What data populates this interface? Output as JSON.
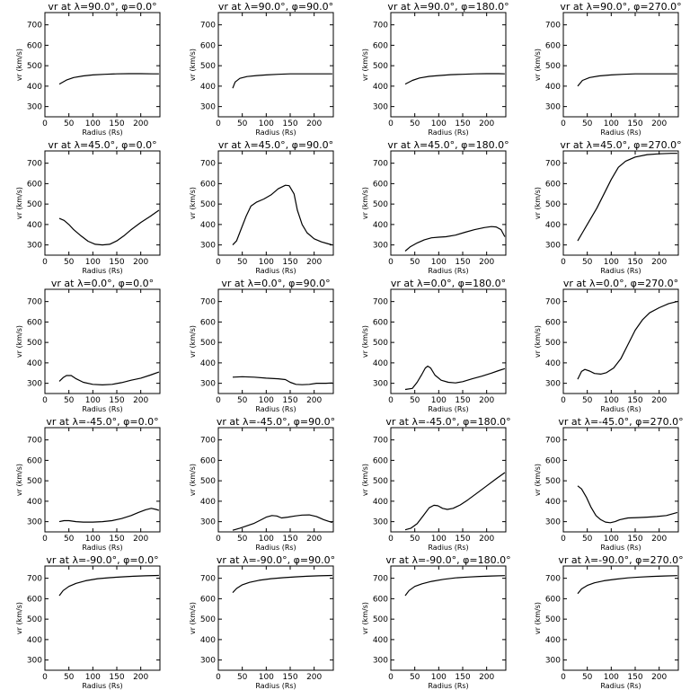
{
  "chart_data": {
    "type": "line",
    "layout": "grid-5x4",
    "xlabel": "Radius (Rs)",
    "ylabel": "vr (km/s)",
    "xlim": [
      0,
      240
    ],
    "ylim": [
      250,
      760
    ],
    "xticks": [
      0,
      50,
      100,
      150,
      200
    ],
    "yticks": [
      300,
      400,
      500,
      600,
      700
    ],
    "panels": [
      {
        "title": "vr at λ=90.0°, φ=0.0°",
        "points": [
          [
            30,
            410
          ],
          [
            45,
            430
          ],
          [
            60,
            442
          ],
          [
            80,
            450
          ],
          [
            100,
            455
          ],
          [
            125,
            458
          ],
          [
            150,
            460
          ],
          [
            175,
            461
          ],
          [
            200,
            461
          ],
          [
            225,
            460
          ],
          [
            238,
            460
          ]
        ]
      },
      {
        "title": "vr at λ=90.0°, φ=90.0°",
        "points": [
          [
            30,
            390
          ],
          [
            35,
            420
          ],
          [
            45,
            438
          ],
          [
            60,
            447
          ],
          [
            80,
            452
          ],
          [
            100,
            455
          ],
          [
            125,
            458
          ],
          [
            150,
            460
          ],
          [
            175,
            460
          ],
          [
            200,
            460
          ],
          [
            225,
            460
          ],
          [
            238,
            460
          ]
        ]
      },
      {
        "title": "vr at λ=90.0°, φ=180.0°",
        "points": [
          [
            30,
            410
          ],
          [
            45,
            428
          ],
          [
            60,
            440
          ],
          [
            80,
            448
          ],
          [
            100,
            452
          ],
          [
            125,
            456
          ],
          [
            150,
            458
          ],
          [
            175,
            460
          ],
          [
            200,
            461
          ],
          [
            225,
            461
          ],
          [
            238,
            460
          ]
        ]
      },
      {
        "title": "vr at λ=90.0°, φ=270.0°",
        "points": [
          [
            30,
            400
          ],
          [
            40,
            428
          ],
          [
            55,
            442
          ],
          [
            75,
            450
          ],
          [
            100,
            455
          ],
          [
            125,
            458
          ],
          [
            150,
            460
          ],
          [
            175,
            460
          ],
          [
            200,
            460
          ],
          [
            225,
            460
          ],
          [
            238,
            460
          ]
        ]
      },
      {
        "title": "vr at λ=45.0°, φ=0.0°",
        "points": [
          [
            30,
            430
          ],
          [
            40,
            420
          ],
          [
            50,
            400
          ],
          [
            60,
            375
          ],
          [
            75,
            345
          ],
          [
            90,
            318
          ],
          [
            105,
            303
          ],
          [
            120,
            300
          ],
          [
            135,
            303
          ],
          [
            150,
            320
          ],
          [
            165,
            345
          ],
          [
            180,
            375
          ],
          [
            200,
            410
          ],
          [
            220,
            440
          ],
          [
            238,
            470
          ]
        ]
      },
      {
        "title": "vr at λ=45.0°, φ=90.0°",
        "points": [
          [
            30,
            300
          ],
          [
            38,
            320
          ],
          [
            48,
            380
          ],
          [
            58,
            440
          ],
          [
            68,
            490
          ],
          [
            80,
            510
          ],
          [
            95,
            525
          ],
          [
            110,
            545
          ],
          [
            125,
            575
          ],
          [
            140,
            592
          ],
          [
            148,
            590
          ],
          [
            158,
            550
          ],
          [
            165,
            470
          ],
          [
            175,
            400
          ],
          [
            185,
            360
          ],
          [
            200,
            330
          ],
          [
            215,
            315
          ],
          [
            230,
            305
          ],
          [
            238,
            300
          ]
        ]
      },
      {
        "title": "vr at λ=45.0°, φ=180.0°",
        "points": [
          [
            30,
            270
          ],
          [
            40,
            290
          ],
          [
            55,
            310
          ],
          [
            70,
            325
          ],
          [
            85,
            335
          ],
          [
            100,
            338
          ],
          [
            115,
            340
          ],
          [
            135,
            348
          ],
          [
            155,
            362
          ],
          [
            175,
            375
          ],
          [
            195,
            385
          ],
          [
            210,
            390
          ],
          [
            220,
            388
          ],
          [
            230,
            375
          ],
          [
            238,
            340
          ]
        ]
      },
      {
        "title": "vr at λ=45.0°, φ=270.0°",
        "points": [
          [
            30,
            320
          ],
          [
            40,
            360
          ],
          [
            55,
            420
          ],
          [
            70,
            480
          ],
          [
            85,
            550
          ],
          [
            100,
            620
          ],
          [
            115,
            680
          ],
          [
            130,
            710
          ],
          [
            150,
            730
          ],
          [
            175,
            742
          ],
          [
            200,
            746
          ],
          [
            225,
            748
          ],
          [
            238,
            748
          ]
        ]
      },
      {
        "title": "vr at λ=0.0°, φ=0.0°",
        "points": [
          [
            30,
            310
          ],
          [
            38,
            328
          ],
          [
            45,
            338
          ],
          [
            55,
            338
          ],
          [
            65,
            322
          ],
          [
            80,
            305
          ],
          [
            100,
            295
          ],
          [
            120,
            292
          ],
          [
            140,
            295
          ],
          [
            160,
            303
          ],
          [
            180,
            315
          ],
          [
            200,
            325
          ],
          [
            220,
            340
          ],
          [
            238,
            355
          ]
        ]
      },
      {
        "title": "vr at λ=0.0°, φ=90.0°",
        "points": [
          [
            30,
            330
          ],
          [
            50,
            332
          ],
          [
            75,
            330
          ],
          [
            100,
            325
          ],
          [
            125,
            322
          ],
          [
            140,
            318
          ],
          [
            150,
            305
          ],
          [
            162,
            295
          ],
          [
            175,
            293
          ],
          [
            190,
            295
          ],
          [
            205,
            300
          ],
          [
            225,
            300
          ],
          [
            238,
            302
          ]
        ]
      },
      {
        "title": "vr at λ=0.0°, φ=180.0°",
        "points": [
          [
            30,
            270
          ],
          [
            45,
            275
          ],
          [
            55,
            305
          ],
          [
            65,
            345
          ],
          [
            72,
            375
          ],
          [
            77,
            384
          ],
          [
            83,
            375
          ],
          [
            92,
            340
          ],
          [
            105,
            315
          ],
          [
            120,
            305
          ],
          [
            135,
            302
          ],
          [
            150,
            308
          ],
          [
            170,
            322
          ],
          [
            190,
            335
          ],
          [
            210,
            350
          ],
          [
            225,
            362
          ],
          [
            238,
            372
          ]
        ]
      },
      {
        "title": "vr at λ=0.0°, φ=270.0°",
        "points": [
          [
            30,
            320
          ],
          [
            38,
            358
          ],
          [
            45,
            368
          ],
          [
            55,
            360
          ],
          [
            65,
            348
          ],
          [
            78,
            345
          ],
          [
            90,
            352
          ],
          [
            105,
            375
          ],
          [
            120,
            420
          ],
          [
            135,
            490
          ],
          [
            150,
            560
          ],
          [
            165,
            610
          ],
          [
            180,
            645
          ],
          [
            200,
            670
          ],
          [
            220,
            690
          ],
          [
            238,
            700
          ]
        ]
      },
      {
        "title": "vr at λ=-45.0°, φ=0.0°",
        "points": [
          [
            30,
            300
          ],
          [
            40,
            305
          ],
          [
            50,
            305
          ],
          [
            65,
            300
          ],
          [
            80,
            298
          ],
          [
            100,
            298
          ],
          [
            120,
            300
          ],
          [
            140,
            305
          ],
          [
            160,
            315
          ],
          [
            180,
            330
          ],
          [
            195,
            345
          ],
          [
            210,
            358
          ],
          [
            222,
            365
          ],
          [
            232,
            360
          ],
          [
            238,
            355
          ]
        ]
      },
      {
        "title": "vr at λ=-45.0°, φ=90.0°",
        "points": [
          [
            30,
            258
          ],
          [
            45,
            268
          ],
          [
            60,
            280
          ],
          [
            75,
            292
          ],
          [
            90,
            310
          ],
          [
            100,
            322
          ],
          [
            112,
            330
          ],
          [
            122,
            328
          ],
          [
            132,
            318
          ],
          [
            145,
            322
          ],
          [
            160,
            328
          ],
          [
            175,
            332
          ],
          [
            190,
            333
          ],
          [
            205,
            325
          ],
          [
            220,
            310
          ],
          [
            232,
            300
          ],
          [
            238,
            296
          ]
        ]
      },
      {
        "title": "vr at λ=-45.0°, φ=180.0°",
        "points": [
          [
            30,
            260
          ],
          [
            42,
            268
          ],
          [
            55,
            290
          ],
          [
            68,
            330
          ],
          [
            80,
            368
          ],
          [
            90,
            380
          ],
          [
            98,
            378
          ],
          [
            108,
            365
          ],
          [
            118,
            360
          ],
          [
            130,
            365
          ],
          [
            145,
            382
          ],
          [
            160,
            405
          ],
          [
            180,
            440
          ],
          [
            200,
            475
          ],
          [
            220,
            510
          ],
          [
            238,
            540
          ]
        ]
      },
      {
        "title": "vr at λ=-45.0°, φ=270.0°",
        "points": [
          [
            30,
            475
          ],
          [
            38,
            460
          ],
          [
            48,
            420
          ],
          [
            58,
            370
          ],
          [
            68,
            330
          ],
          [
            78,
            310
          ],
          [
            88,
            298
          ],
          [
            98,
            295
          ],
          [
            108,
            300
          ],
          [
            118,
            310
          ],
          [
            135,
            318
          ],
          [
            155,
            320
          ],
          [
            175,
            322
          ],
          [
            195,
            325
          ],
          [
            215,
            330
          ],
          [
            238,
            345
          ]
        ]
      },
      {
        "title": "vr at λ=-90.0°, φ=0.0°",
        "points": [
          [
            30,
            615
          ],
          [
            38,
            640
          ],
          [
            50,
            660
          ],
          [
            65,
            675
          ],
          [
            85,
            688
          ],
          [
            110,
            698
          ],
          [
            135,
            703
          ],
          [
            160,
            707
          ],
          [
            185,
            710
          ],
          [
            210,
            712
          ],
          [
            238,
            714
          ]
        ]
      },
      {
        "title": "vr at λ=-90.0°, φ=90.0°",
        "points": [
          [
            30,
            630
          ],
          [
            38,
            650
          ],
          [
            50,
            668
          ],
          [
            65,
            680
          ],
          [
            85,
            690
          ],
          [
            110,
            698
          ],
          [
            135,
            703
          ],
          [
            160,
            707
          ],
          [
            185,
            710
          ],
          [
            210,
            712
          ],
          [
            238,
            714
          ]
        ]
      },
      {
        "title": "vr at λ=-90.0°, φ=180.0°",
        "points": [
          [
            30,
            615
          ],
          [
            38,
            640
          ],
          [
            50,
            660
          ],
          [
            65,
            673
          ],
          [
            85,
            685
          ],
          [
            110,
            695
          ],
          [
            135,
            702
          ],
          [
            160,
            706
          ],
          [
            185,
            709
          ],
          [
            210,
            711
          ],
          [
            238,
            713
          ]
        ]
      },
      {
        "title": "vr at λ=-90.0°, φ=270.0°",
        "points": [
          [
            30,
            625
          ],
          [
            38,
            648
          ],
          [
            50,
            665
          ],
          [
            65,
            678
          ],
          [
            85,
            688
          ],
          [
            110,
            696
          ],
          [
            135,
            702
          ],
          [
            160,
            706
          ],
          [
            185,
            709
          ],
          [
            210,
            711
          ],
          [
            238,
            713
          ]
        ]
      }
    ]
  }
}
